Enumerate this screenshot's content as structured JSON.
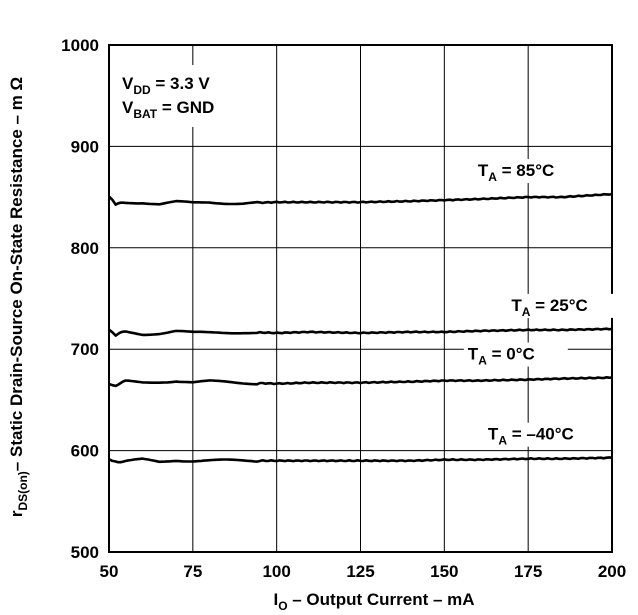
{
  "chart_data": {
    "type": "line",
    "xlabel": {
      "main": "I",
      "sub": "O",
      "rest": " – Output Current – mA"
    },
    "ylabel": {
      "main": "r",
      "sub": "DS(on)",
      "rest": "– Static Drain-Source On-State Resistance – m Ω"
    },
    "xlim": [
      50,
      200
    ],
    "ylim": [
      500,
      1000
    ],
    "xticks": [
      "50",
      "75",
      "100",
      "125",
      "150",
      "175",
      "200"
    ],
    "yticks": [
      "500",
      "600",
      "700",
      "800",
      "900",
      "1000"
    ],
    "grid": true,
    "conditions": [
      {
        "main": "V",
        "sub": "DD",
        "rest": " = 3.3 V"
      },
      {
        "main": "V",
        "sub": "BAT",
        "rest": " = GND"
      }
    ],
    "series": [
      {
        "name": {
          "main": "T",
          "sub": "A",
          "rest": " = 85°C"
        },
        "x": [
          50,
          52,
          55,
          60,
          65,
          70,
          75,
          80,
          90,
          100,
          110,
          125,
          140,
          150,
          160,
          175,
          185,
          200
        ],
        "y": [
          850,
          842,
          845,
          845,
          843,
          845,
          844,
          845,
          844,
          845,
          845,
          845,
          846,
          847,
          848,
          850,
          850,
          853
        ]
      },
      {
        "name": {
          "main": "T",
          "sub": "A",
          "rest": " = 25°C"
        },
        "x": [
          50,
          52,
          55,
          60,
          65,
          70,
          75,
          80,
          90,
          100,
          110,
          125,
          140,
          150,
          160,
          175,
          185,
          200
        ],
        "y": [
          718,
          714,
          717,
          715,
          716,
          718,
          716,
          716,
          717,
          716,
          717,
          716,
          717,
          717,
          718,
          719,
          719,
          720
        ]
      },
      {
        "name": {
          "main": "T",
          "sub": "A",
          "rest": " = 0°C"
        },
        "x": [
          50,
          52,
          55,
          60,
          65,
          70,
          75,
          80,
          90,
          100,
          110,
          125,
          140,
          150,
          160,
          175,
          185,
          200
        ],
        "y": [
          665,
          665,
          668,
          667,
          668,
          669,
          667,
          668,
          667,
          666,
          667,
          667,
          668,
          669,
          669,
          670,
          671,
          672
        ]
      },
      {
        "name": {
          "main": "T",
          "sub": "A",
          "rest": " = –40°C"
        },
        "x": [
          50,
          52,
          55,
          60,
          65,
          70,
          75,
          80,
          90,
          100,
          110,
          125,
          140,
          150,
          160,
          175,
          185,
          200
        ],
        "y": [
          592,
          590,
          589,
          591,
          589,
          591,
          590,
          590,
          590,
          590,
          590,
          590,
          590,
          591,
          591,
          592,
          592,
          593
        ]
      }
    ],
    "line_color": "#000000",
    "grid_color": "#000000"
  }
}
